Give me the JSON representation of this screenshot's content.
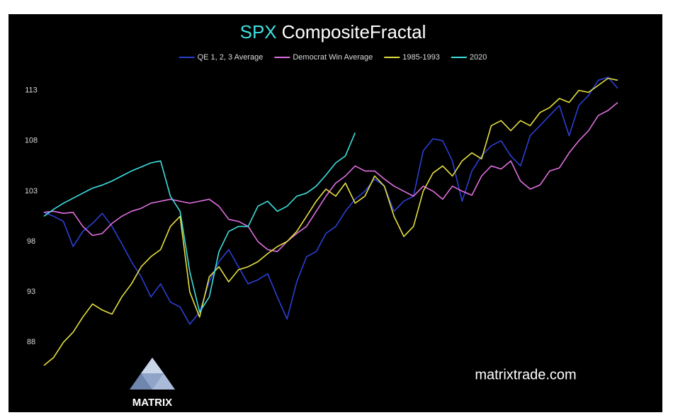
{
  "chart_data": {
    "type": "line",
    "title_lead": "SPX",
    "title": "CompositeFractal",
    "annotations": [
      "matrixtrade.com",
      "MATRIX"
    ],
    "ylim": [
      85,
      115.5
    ],
    "yticks": [
      88,
      93,
      98,
      103,
      108,
      113
    ],
    "grid": false,
    "legend": "top",
    "series": [
      {
        "name": "QE 1, 2, 3 Average",
        "color": "#2b3fd4",
        "values": [
          100.9,
          100.5,
          100.0,
          97.5,
          99.0,
          99.8,
          100.8,
          99.5,
          97.8,
          96.0,
          94.5,
          92.5,
          93.8,
          92.0,
          91.5,
          89.8,
          91.0,
          94.0,
          96.0,
          97.2,
          95.5,
          93.8,
          94.2,
          94.8,
          92.5,
          90.3,
          94.0,
          96.5,
          97.0,
          98.8,
          99.5,
          101.0,
          102.2,
          103.0,
          104.2,
          103.5,
          101.0,
          102.0,
          102.5,
          107.0,
          108.2,
          108.0,
          106.0,
          102.0,
          105.0,
          106.5,
          107.5,
          108.0,
          106.5,
          105.5,
          108.5,
          109.5,
          110.5,
          111.5,
          108.5,
          111.5,
          112.5,
          114.0,
          114.3,
          113.2
        ]
      },
      {
        "name": "Democrat Win Average",
        "color": "#e070e0",
        "values": [
          100.9,
          101.0,
          100.8,
          100.9,
          99.5,
          98.6,
          98.8,
          99.8,
          100.5,
          101.0,
          101.3,
          101.8,
          102.0,
          102.2,
          102.0,
          101.8,
          102.0,
          102.2,
          101.5,
          100.2,
          100.0,
          99.5,
          98.0,
          97.2,
          97.0,
          98.0,
          98.8,
          99.5,
          101.0,
          102.5,
          103.8,
          104.5,
          105.5,
          105.0,
          105.0,
          104.2,
          103.5,
          103.0,
          102.5,
          103.5,
          103.0,
          102.2,
          103.5,
          103.0,
          102.6,
          104.5,
          105.5,
          105.2,
          106.0,
          104.0,
          103.2,
          103.6,
          105.0,
          105.3,
          106.8,
          108.0,
          109.0,
          110.5,
          111.0,
          111.8
        ]
      },
      {
        "name": "1985-1993",
        "color": "#e6e040",
        "values": [
          85.7,
          86.5,
          88.0,
          89.0,
          90.5,
          91.8,
          91.2,
          90.8,
          92.5,
          93.8,
          95.5,
          96.5,
          97.2,
          99.5,
          100.5,
          93.0,
          90.5,
          94.5,
          95.5,
          94.0,
          95.2,
          95.5,
          96.0,
          96.8,
          97.5,
          98.0,
          99.0,
          100.5,
          102.0,
          103.2,
          102.5,
          103.8,
          101.8,
          102.5,
          104.5,
          103.5,
          100.5,
          98.5,
          99.5,
          103.0,
          104.8,
          105.5,
          104.5,
          106.0,
          106.8,
          106.2,
          109.5,
          110.0,
          109.0,
          110.0,
          109.5,
          110.8,
          111.3,
          112.2,
          111.8,
          113.0,
          112.8,
          113.5,
          114.2,
          114.0
        ]
      },
      {
        "name": "2020",
        "color": "#3ee0e0",
        "values": [
          100.5,
          101.2,
          101.8,
          102.3,
          102.8,
          103.3,
          103.6,
          104.0,
          104.5,
          105.0,
          105.4,
          105.8,
          106.0,
          102.5,
          101.0,
          95.0,
          91.0,
          92.5,
          97.0,
          99.0,
          99.5,
          99.5,
          101.5,
          102.0,
          101.0,
          101.5,
          102.5,
          102.8,
          103.5,
          104.6,
          105.8,
          106.5,
          108.8
        ]
      }
    ]
  }
}
